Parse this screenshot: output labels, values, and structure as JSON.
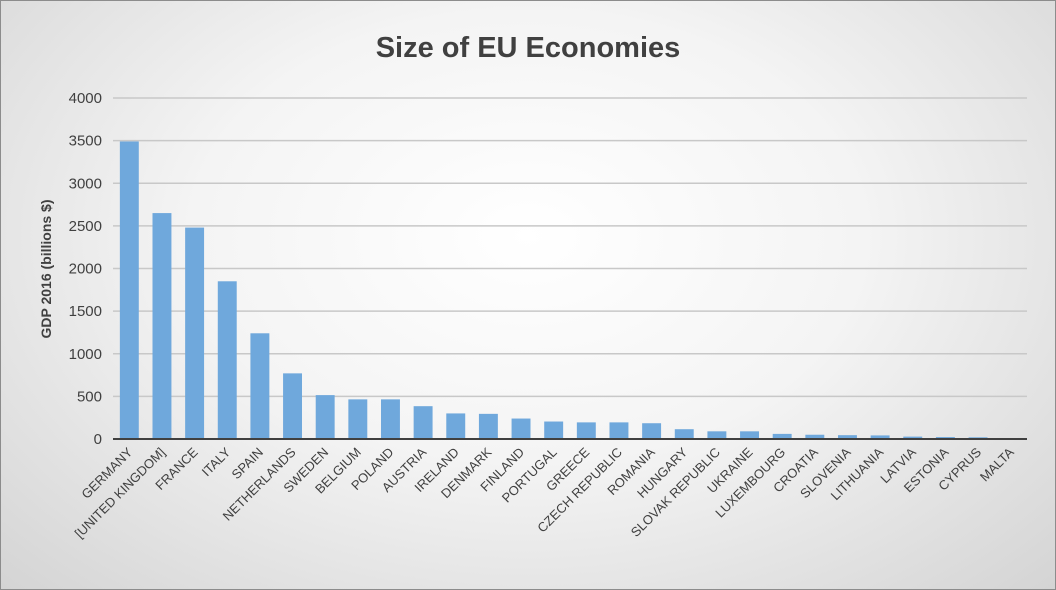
{
  "chart_data": {
    "type": "bar",
    "title": "Size of EU Economies",
    "xlabel": "",
    "ylabel": "GDP 2016 (billions $)",
    "ylim": [
      0,
      4000
    ],
    "yticks": [
      0,
      500,
      1000,
      1500,
      2000,
      2500,
      3000,
      3500,
      4000
    ],
    "grid": true,
    "legend": "none",
    "bar_color": "#6fa8dc",
    "categories": [
      "GERMANY",
      "[UNITED KINGDOM]",
      "FRANCE",
      "ITALY",
      "SPAIN",
      "NETHERLANDS",
      "SWEDEN",
      "BELGIUM",
      "POLAND",
      "AUSTRIA",
      "IRELAND",
      "DENMARK",
      "FINLAND",
      "PORTUGAL",
      "GREECE",
      "CZECH REPUBLIC",
      "ROMANIA",
      "HUNGARY",
      "SLOVAK REPUBLIC",
      "UKRAINE",
      "LUXEMBOURG",
      "CROATIA",
      "SLOVENIA",
      "LITHUANIA",
      "LATVIA",
      "ESTONIA",
      "CYPRUS",
      "MALTA"
    ],
    "values": [
      3490,
      2650,
      2480,
      1850,
      1240,
      770,
      515,
      465,
      465,
      385,
      300,
      295,
      240,
      205,
      195,
      195,
      185,
      115,
      90,
      90,
      60,
      50,
      45,
      42,
      28,
      23,
      20,
      11
    ]
  }
}
